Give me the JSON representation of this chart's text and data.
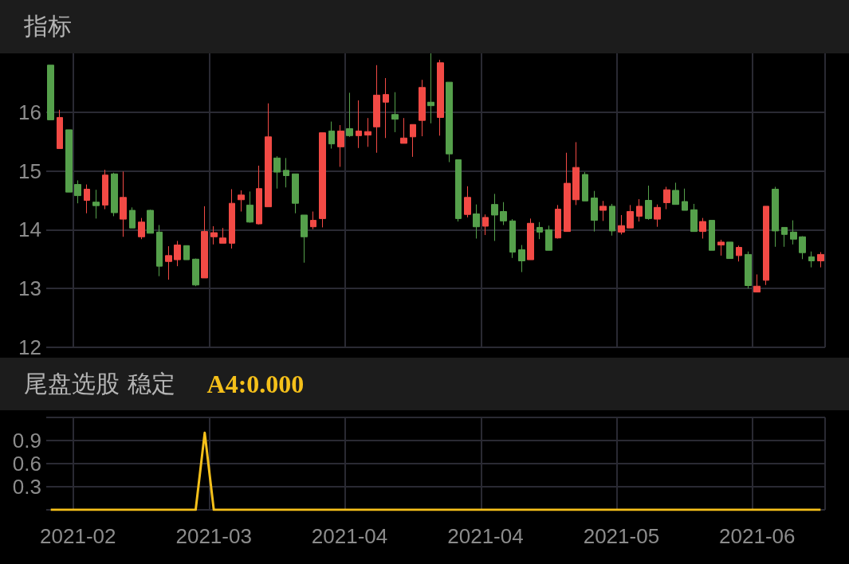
{
  "chart_data": [
    {
      "type": "candlestick",
      "title": "指标",
      "categories": [
        null,
        null,
        null,
        "2021-02",
        null,
        null,
        null,
        null,
        null,
        null,
        null,
        null,
        null,
        null,
        null,
        null,
        null,
        null,
        "2021-03",
        null,
        null,
        null,
        null,
        null,
        null,
        null,
        null,
        null,
        null,
        null,
        null,
        null,
        null,
        "2021-04",
        null,
        null,
        null,
        null,
        null,
        null,
        null,
        null,
        null,
        null,
        null,
        null,
        null,
        null,
        "2021-04",
        null,
        null,
        null,
        null,
        null,
        null,
        null,
        null,
        null,
        null,
        null,
        null,
        null,
        null,
        "2021-05",
        null,
        null,
        null,
        null,
        null,
        null,
        null,
        null,
        null,
        null,
        null,
        null,
        null,
        null,
        "2021-06",
        null,
        null,
        null,
        null,
        null,
        null,
        null
      ],
      "colors": [
        "#55a04b",
        "#f24a45",
        "#55a04b",
        "#55a04b",
        "#f24a45",
        "#55a04b",
        "#f24a45",
        "#55a04b",
        "#f24a45",
        "#55a04b",
        "#f24a45",
        "#55a04b",
        "#55a04b",
        "#f24a45",
        "#f24a45",
        "#55a04b",
        "#55a04b",
        "#f24a45",
        "#f24a45",
        "#f24a45",
        "#f24a45",
        "#f24a45",
        "#55a04b",
        "#f24a45",
        "#f24a45",
        "#55a04b",
        "#55a04b",
        "#55a04b",
        "#55a04b",
        "#f24a45",
        "#f24a45",
        "#55a04b",
        "#f24a45",
        "#55a04b",
        "#f24a45",
        "#f24a45",
        "#f24a45",
        "#f24a45",
        "#55a04b",
        "#f24a45",
        "#f24a45",
        "#f24a45",
        "#55a04b",
        "#f24a45",
        "#55a04b",
        "#55a04b",
        "#f24a45",
        "#55a04b",
        "#f24a45",
        "#55a04b",
        "#55a04b",
        "#55a04b",
        "#55a04b",
        "#f24a45",
        "#55a04b",
        "#55a04b",
        "#f24a45",
        "#f24a45",
        "#f24a45",
        "#55a04b",
        "#55a04b",
        "#f24a45",
        "#55a04b",
        "#f24a45",
        "#f24a45",
        "#f24a45",
        "#55a04b",
        "#f24a45",
        "#f24a45",
        "#55a04b",
        "#55a04b",
        "#55a04b",
        "#f24a45",
        "#55a04b",
        "#f24a45",
        "#55a04b",
        "#f24a45",
        "#55a04b",
        "#f24a45",
        "#f24a45",
        "#55a04b",
        "#55a04b",
        "#55a04b",
        "#55a04b",
        "#55a04b",
        "#f24a45"
      ],
      "ohlc": [
        [
          16.8,
          16.8,
          15.87,
          15.87
        ],
        [
          15.38,
          16.04,
          15.38,
          15.91
        ],
        [
          15.7,
          15.7,
          14.64,
          14.64
        ],
        [
          14.77,
          14.84,
          14.45,
          14.58
        ],
        [
          14.5,
          14.77,
          14.28,
          14.69
        ],
        [
          14.47,
          14.68,
          14.19,
          14.41
        ],
        [
          14.42,
          15.02,
          14.35,
          14.93
        ],
        [
          14.95,
          14.97,
          14.23,
          14.29
        ],
        [
          14.18,
          14.99,
          13.88,
          14.55
        ],
        [
          14.33,
          14.38,
          14.03,
          14.03
        ],
        [
          13.88,
          14.2,
          13.84,
          14.13
        ],
        [
          14.33,
          14.34,
          13.94,
          13.94
        ],
        [
          13.96,
          14.08,
          13.21,
          13.38
        ],
        [
          13.46,
          13.72,
          13.15,
          13.56
        ],
        [
          13.49,
          13.81,
          13.38,
          13.74
        ],
        [
          13.73,
          13.73,
          13.49,
          13.49
        ],
        [
          13.5,
          13.51,
          13.04,
          13.06
        ],
        [
          13.18,
          14.4,
          13.18,
          13.97
        ],
        [
          13.88,
          14.06,
          13.75,
          13.95
        ],
        [
          13.77,
          14.03,
          13.77,
          13.86
        ],
        [
          13.77,
          14.69,
          13.68,
          14.45
        ],
        [
          14.51,
          14.67,
          14.31,
          14.59
        ],
        [
          14.42,
          14.65,
          14.12,
          14.13
        ],
        [
          14.1,
          15.09,
          14.09,
          14.7
        ],
        [
          14.39,
          16.15,
          14.39,
          15.58
        ],
        [
          15.22,
          15.25,
          14.7,
          14.98
        ],
        [
          15.01,
          15.22,
          14.72,
          14.92
        ],
        [
          14.95,
          14.95,
          14.28,
          14.45
        ],
        [
          14.25,
          14.25,
          13.44,
          13.88
        ],
        [
          14.05,
          14.31,
          14.01,
          14.16
        ],
        [
          14.19,
          15.65,
          14.04,
          15.65
        ],
        [
          15.68,
          15.84,
          15.38,
          15.46
        ],
        [
          15.41,
          15.78,
          15.07,
          15.68
        ],
        [
          15.72,
          16.33,
          15.58,
          15.6
        ],
        [
          15.6,
          16.2,
          15.39,
          15.68
        ],
        [
          15.61,
          15.9,
          15.41,
          15.67
        ],
        [
          15.75,
          16.8,
          15.31,
          16.29
        ],
        [
          16.17,
          16.58,
          15.56,
          16.3
        ],
        [
          15.96,
          16.34,
          15.66,
          15.88
        ],
        [
          15.47,
          15.9,
          15.47,
          15.56
        ],
        [
          15.58,
          15.79,
          15.24,
          15.79
        ],
        [
          15.86,
          16.55,
          15.59,
          16.42
        ],
        [
          16.17,
          17.0,
          15.81,
          16.11
        ],
        [
          15.91,
          16.89,
          15.6,
          16.84
        ],
        [
          16.51,
          16.51,
          15.15,
          15.29
        ],
        [
          15.19,
          15.19,
          14.14,
          14.19
        ],
        [
          14.26,
          14.74,
          14.21,
          14.55
        ],
        [
          14.27,
          14.43,
          13.85,
          14.05
        ],
        [
          14.06,
          14.26,
          13.91,
          14.21
        ],
        [
          14.43,
          14.61,
          13.81,
          14.25
        ],
        [
          14.31,
          14.47,
          14.08,
          14.15
        ],
        [
          14.15,
          14.18,
          13.52,
          13.62
        ],
        [
          13.66,
          13.74,
          13.28,
          13.47
        ],
        [
          13.49,
          14.19,
          13.49,
          14.11
        ],
        [
          14.04,
          14.13,
          13.84,
          13.96
        ],
        [
          14.0,
          14.07,
          13.65,
          13.65
        ],
        [
          13.86,
          14.42,
          13.85,
          14.35
        ],
        [
          13.97,
          15.31,
          13.97,
          14.79
        ],
        [
          14.51,
          15.49,
          14.42,
          15.06
        ],
        [
          14.94,
          14.98,
          14.49,
          14.49
        ],
        [
          14.54,
          14.66,
          13.97,
          14.16
        ],
        [
          14.33,
          14.49,
          14.15,
          14.4
        ],
        [
          14.4,
          14.44,
          13.9,
          13.98
        ],
        [
          13.96,
          14.25,
          13.92,
          14.07
        ],
        [
          14.03,
          14.42,
          14.03,
          14.31
        ],
        [
          14.23,
          14.52,
          14.14,
          14.4
        ],
        [
          14.5,
          14.75,
          14.17,
          14.19
        ],
        [
          14.18,
          14.43,
          14.05,
          14.38
        ],
        [
          14.46,
          14.73,
          14.35,
          14.68
        ],
        [
          14.67,
          14.8,
          14.43,
          14.43
        ],
        [
          14.48,
          14.7,
          14.33,
          14.33
        ],
        [
          14.34,
          14.44,
          13.97,
          13.97
        ],
        [
          13.97,
          14.2,
          13.85,
          14.14
        ],
        [
          14.16,
          14.16,
          13.65,
          13.65
        ],
        [
          13.74,
          13.83,
          13.56,
          13.79
        ],
        [
          13.79,
          13.79,
          13.51,
          13.51
        ],
        [
          13.56,
          13.73,
          13.46,
          13.7
        ],
        [
          13.58,
          13.63,
          13.0,
          13.05
        ],
        [
          12.94,
          13.24,
          12.94,
          13.04
        ],
        [
          13.14,
          14.4,
          13.06,
          14.4
        ],
        [
          14.69,
          14.73,
          13.71,
          13.98
        ],
        [
          14.04,
          14.04,
          13.71,
          13.92
        ],
        [
          13.96,
          14.16,
          13.75,
          13.84
        ],
        [
          13.88,
          13.89,
          13.5,
          13.61
        ],
        [
          13.54,
          13.63,
          13.36,
          13.47
        ],
        [
          13.47,
          13.62,
          13.36,
          13.58
        ]
      ],
      "ylim": [
        12,
        17
      ],
      "yticks": [
        12,
        13,
        14,
        15,
        16
      ],
      "grid": true,
      "tick_labels": "y"
    },
    {
      "type": "line",
      "title": "尾盘选股 稳定",
      "annotations": [
        "A4:0.000"
      ],
      "categories": [
        null,
        null,
        null,
        "2021-02",
        null,
        null,
        null,
        null,
        null,
        null,
        null,
        null,
        null,
        null,
        null,
        null,
        null,
        null,
        "2021-03",
        null,
        null,
        null,
        null,
        null,
        null,
        null,
        null,
        null,
        null,
        null,
        null,
        null,
        null,
        "2021-04",
        null,
        null,
        null,
        null,
        null,
        null,
        null,
        null,
        null,
        null,
        null,
        null,
        null,
        null,
        "2021-04",
        null,
        null,
        null,
        null,
        null,
        null,
        null,
        null,
        null,
        null,
        null,
        null,
        null,
        null,
        "2021-05",
        null,
        null,
        null,
        null,
        null,
        null,
        null,
        null,
        null,
        null,
        null,
        null,
        null,
        null,
        "2021-06",
        null,
        null,
        null,
        null,
        null,
        null,
        null
      ],
      "series": [
        {
          "color": "#f5c01a",
          "values": [
            0,
            0,
            0,
            0,
            0,
            0,
            0,
            0,
            0,
            0,
            0,
            0,
            0,
            0,
            0,
            0,
            0,
            1,
            0,
            0,
            0,
            0,
            0,
            0,
            0,
            0,
            0,
            0,
            0,
            0,
            0,
            0,
            0,
            0,
            0,
            0,
            0,
            0,
            0,
            0,
            0,
            0,
            0,
            0,
            0,
            0,
            0,
            0,
            0,
            0,
            0,
            0,
            0,
            0,
            0,
            0,
            0,
            0,
            0,
            0,
            0,
            0,
            0,
            0,
            0,
            0,
            0,
            0,
            0,
            0,
            0,
            0,
            0,
            0,
            0,
            0,
            0,
            0,
            0,
            0,
            0,
            0,
            0,
            0,
            0,
            0
          ]
        }
      ],
      "ylim": [
        0,
        1.2
      ],
      "yticks": [
        {
          "value": 0,
          "label": null
        },
        0.3,
        0.6,
        0.9,
        {
          "value": 1.2,
          "label": null
        }
      ],
      "grid": true,
      "marker": "none"
    }
  ]
}
